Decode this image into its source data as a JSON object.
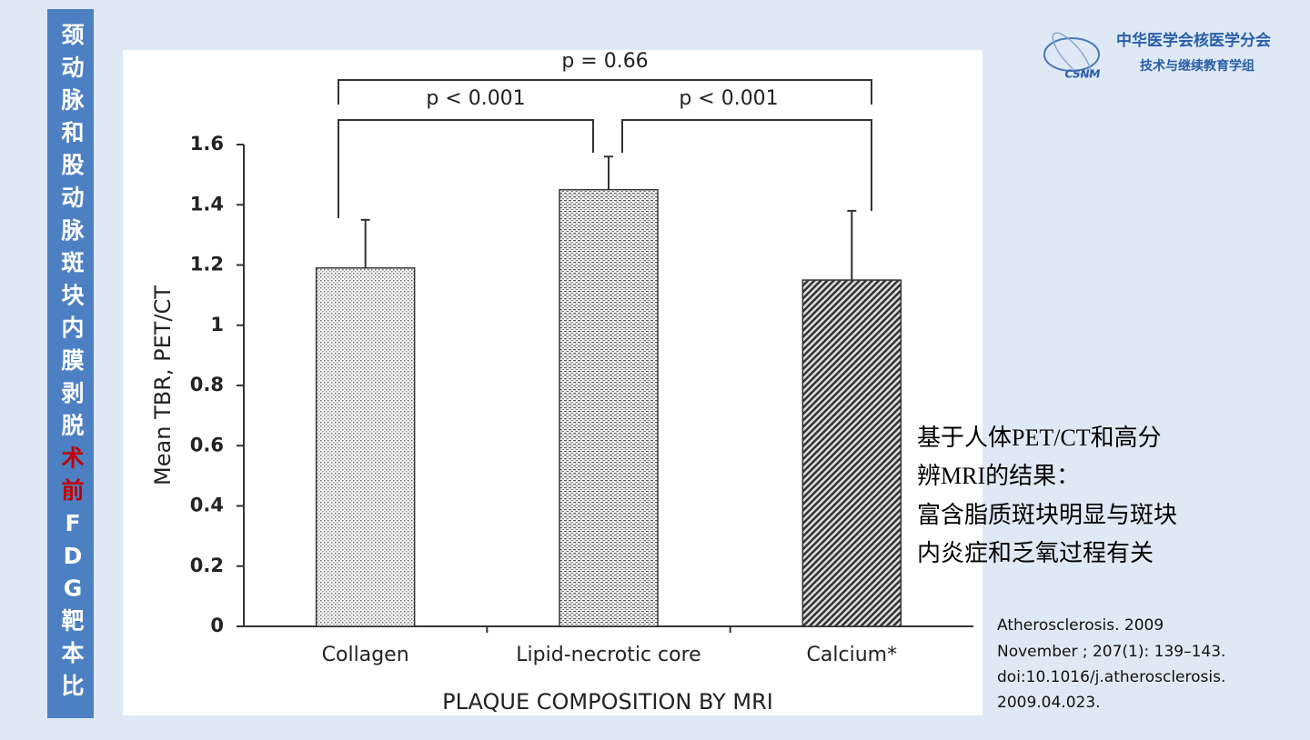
{
  "chart_data": {
    "type": "bar",
    "categories": [
      "Collagen",
      "Lipid-necrotic core",
      "Calcium*"
    ],
    "values": [
      1.19,
      1.45,
      1.15
    ],
    "errors": [
      0.16,
      0.11,
      0.23
    ],
    "ylim": [
      0,
      1.6
    ],
    "yticks": [
      0,
      0.2,
      0.4,
      0.6,
      0.8,
      1,
      1.2,
      1.4,
      1.6
    ],
    "ylabel": "Mean TBR, PET/CT",
    "xlabel": "PLAQUE COMPOSITION BY MRI",
    "annotations": [
      "p = 0.66",
      "p < 0.001",
      "p < 0.001"
    ]
  },
  "sidebar": [
    "颈动脉和股动脉斑块内膜剥脱",
    "术前",
    "FDG靶本比"
  ],
  "logo": {
    "name": "中华医学会核医学分会",
    "subtitle": "技术与继续教育学组",
    "abbr": "CSNM"
  },
  "summary": [
    "基于人体PET/CT和高分",
    "辨MRI的结果：",
    "富含脂质斑块明显与斑块",
    "内炎症和乏氧过程有关"
  ],
  "reference": [
    "Atherosclerosis. 2009",
    "November ; 207(1): 139–143.",
    "doi:10.1016/j.atherosclerosis.",
    "2009.04.023."
  ]
}
